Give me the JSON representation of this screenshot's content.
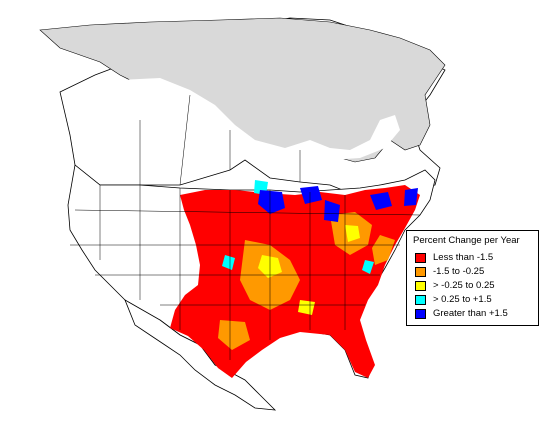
{
  "legend": {
    "title": "Percent Change per Year",
    "items": [
      {
        "label": "Less than -1.5",
        "color": "#ff0000"
      },
      {
        "label": "-1.5 to -0.25",
        "color": "#ff9900"
      },
      {
        "label": "> -0.25 to 0.25",
        "color": "#ffff00"
      },
      {
        "label": "> 0.25 to +1.5",
        "color": "#00ffff"
      },
      {
        "label": "Greater than +1.5",
        "color": "#0000ff"
      }
    ]
  },
  "colors": {
    "outside_range": "#d9d9d9",
    "no_data": "#ffffff",
    "boundaries": "#000000"
  }
}
